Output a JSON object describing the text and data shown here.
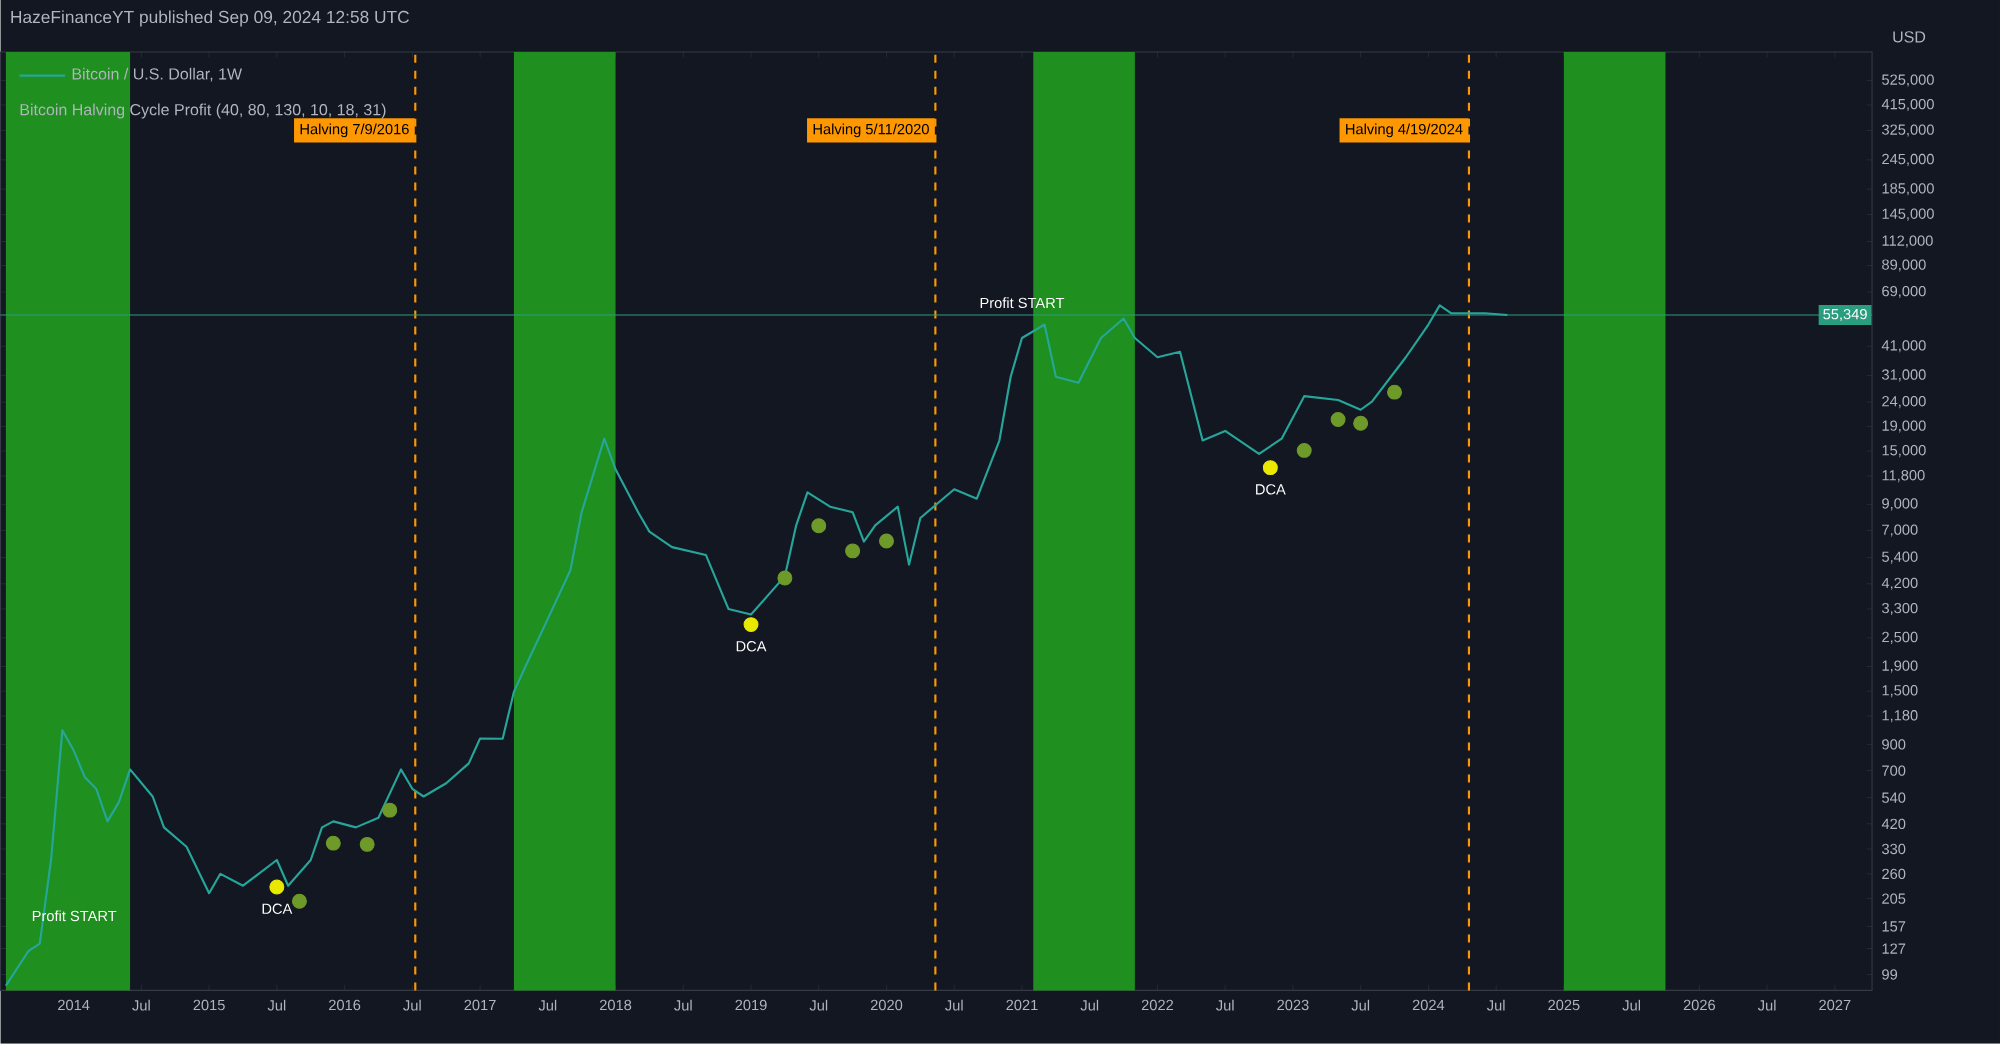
{
  "chart_data": {
    "type": "line",
    "title": "HazeFinanceYT published Sep 09, 2024 12:58 UTC",
    "subtitle": "Bitcoin Halving Cycle Profit (40, 80, 130, 10, 18, 31)",
    "ylabel": "USD",
    "log": "y",
    "legend": "top left",
    "xlim": [
      "2013-06-17",
      "2027-04-10"
    ],
    "ylim": [
      85,
      690000
    ],
    "xticks": [
      {
        "value": "2014-01",
        "label": "2014"
      },
      {
        "value": "2014-07",
        "label": "Jul"
      },
      {
        "value": "2015-01",
        "label": "2015"
      },
      {
        "value": "2015-07",
        "label": "Jul"
      },
      {
        "value": "2016-01",
        "label": "2016"
      },
      {
        "value": "2016-07",
        "label": "Jul"
      },
      {
        "value": "2017-01",
        "label": "2017"
      },
      {
        "value": "2017-07",
        "label": "Jul"
      },
      {
        "value": "2018-01",
        "label": "2018"
      },
      {
        "value": "2018-07",
        "label": "Jul"
      },
      {
        "value": "2019-01",
        "label": "2019"
      },
      {
        "value": "2019-07",
        "label": "Jul"
      },
      {
        "value": "2020-01",
        "label": "2020"
      },
      {
        "value": "2020-07",
        "label": "Jul"
      },
      {
        "value": "2021-01",
        "label": "2021"
      },
      {
        "value": "2021-07",
        "label": "Jul"
      },
      {
        "value": "2022-01",
        "label": "2022"
      },
      {
        "value": "2022-07",
        "label": "Jul"
      },
      {
        "value": "2023-01",
        "label": "2023"
      },
      {
        "value": "2023-07",
        "label": "Jul"
      },
      {
        "value": "2024-01",
        "label": "2024"
      },
      {
        "value": "2024-07",
        "label": "Jul"
      },
      {
        "value": "2025-01",
        "label": "2025"
      },
      {
        "value": "2025-07",
        "label": "Jul"
      },
      {
        "value": "2026-01",
        "label": "2026"
      },
      {
        "value": "2026-07",
        "label": "Jul"
      },
      {
        "value": "2027-01",
        "label": "2027"
      }
    ],
    "yticks": [
      {
        "value": 525000,
        "label": "525,000"
      },
      {
        "value": 415000,
        "label": "415,000"
      },
      {
        "value": 325000,
        "label": "325,000"
      },
      {
        "value": 245000,
        "label": "245,000"
      },
      {
        "value": 185000,
        "label": "185,000"
      },
      {
        "value": 145000,
        "label": "145,000"
      },
      {
        "value": 112000,
        "label": "112,000"
      },
      {
        "value": 89000,
        "label": "89,000"
      },
      {
        "value": 69000,
        "label": "69,000"
      },
      {
        "value": 41000,
        "label": "41,000"
      },
      {
        "value": 31000,
        "label": "31,000"
      },
      {
        "value": 24000,
        "label": "24,000"
      },
      {
        "value": 19000,
        "label": "19,000"
      },
      {
        "value": 15000,
        "label": "15,000"
      },
      {
        "value": 11800,
        "label": "11,800"
      },
      {
        "value": 9000,
        "label": "9,000"
      },
      {
        "value": 7000,
        "label": "7,000"
      },
      {
        "value": 5400,
        "label": "5,400"
      },
      {
        "value": 4200,
        "label": "4,200"
      },
      {
        "value": 3300,
        "label": "3,300"
      },
      {
        "value": 2500,
        "label": "2,500"
      },
      {
        "value": 1900,
        "label": "1,900"
      },
      {
        "value": 1500,
        "label": "1,500"
      },
      {
        "value": 1180,
        "label": "1,180"
      },
      900,
      700,
      540,
      420,
      330,
      260,
      205,
      157,
      127,
      99
    ],
    "series": [
      {
        "name": "Bitcoin / U.S. Dollar, 1W",
        "color": "#26a69a",
        "marker": "none",
        "x": [
          "2013-07",
          "2013-09",
          "2013-10",
          "2013-11",
          "2013-12",
          "2014-01",
          "2014-02",
          "2014-03",
          "2014-04",
          "2014-05",
          "2014-06",
          "2014-08",
          "2014-09",
          "2014-11",
          "2015-01",
          "2015-02",
          "2015-04",
          "2015-07",
          "2015-08",
          "2015-10",
          "2015-11",
          "2015-12",
          "2016-02",
          "2016-04",
          "2016-06",
          "2016-07",
          "2016-08",
          "2016-10",
          "2016-12",
          "2017-01",
          "2017-03",
          "2017-04",
          "2017-05",
          "2017-07",
          "2017-09",
          "2017-10",
          "2017-12",
          "2018-01",
          "2018-03",
          "2018-04",
          "2018-06",
          "2018-09",
          "2018-11",
          "2019-01",
          "2019-04",
          "2019-05",
          "2019-06",
          "2019-08",
          "2019-10",
          "2019-11",
          "2019-12",
          "2020-02",
          "2020-03",
          "2020-04",
          "2020-07",
          "2020-09",
          "2020-11",
          "2020-12",
          "2021-01",
          "2021-03",
          "2021-04",
          "2021-06",
          "2021-08",
          "2021-10",
          "2021-11",
          "2022-01",
          "2022-03",
          "2022-05",
          "2022-07",
          "2022-10",
          "2022-12",
          "2023-02",
          "2023-05",
          "2023-07",
          "2023-08",
          "2023-11",
          "2024-01",
          "2024-02",
          "2024-03",
          "2024-06",
          "2024-08"
        ],
        "values": [
          89,
          124,
          133,
          297,
          1030,
          850,
          656,
          588,
          430,
          516,
          708,
          546,
          406,
          337,
          216,
          260,
          232,
          297,
          232,
          297,
          406,
          430,
          406,
          445,
          708,
          588,
          546,
          620,
          750,
          952,
          950,
          1490,
          1890,
          3000,
          4780,
          8350,
          16900,
          12600,
          8350,
          6930,
          5970,
          5540,
          3300,
          3130,
          4520,
          7360,
          10100,
          8800,
          8350,
          6300,
          7360,
          8800,
          5050,
          7900,
          10400,
          9500,
          16600,
          30600,
          44400,
          50500,
          30600,
          28900,
          44400,
          53500,
          44400,
          36900,
          38900,
          16600,
          18200,
          14600,
          16900,
          25400,
          24500,
          22300,
          24100,
          36900,
          50500,
          60700,
          56300,
          56300,
          55349
        ]
      },
      {
        "type": "scatter",
        "color": "#e8e800",
        "marker": "circle",
        "x": [
          "2015-07",
          "2019-01",
          "2022-11"
        ],
        "values": [
          229,
          2840,
          12800
        ]
      },
      {
        "type": "scatter",
        "color": "#6e9a2a",
        "marker": "circle",
        "x": [
          "2015-09",
          "2015-12",
          "2016-03",
          "2016-05",
          "2019-04",
          "2019-07",
          "2019-10",
          "2020-01",
          "2023-02",
          "2023-05",
          "2023-07",
          "2023-10"
        ],
        "values": [
          200,
          349,
          345,
          479,
          4440,
          7330,
          5760,
          6330,
          15100,
          20300,
          19600,
          26400
        ]
      }
    ],
    "bands": [
      {
        "axis": "x",
        "from": "2013-07",
        "to": "2014-06",
        "color": "#1f8f1f"
      },
      {
        "axis": "x",
        "from": "2017-04",
        "to": "2018-01",
        "color": "#1f8f1f"
      },
      {
        "axis": "x",
        "from": "2021-02",
        "to": "2021-11",
        "color": "#1f8f1f"
      },
      {
        "axis": "x",
        "from": "2025-01",
        "to": "2025-10",
        "color": "#1f8f1f"
      }
    ],
    "ref_lines": [
      {
        "axis": "x",
        "value": "2016-07-09",
        "label": "Halving 7/9/2016",
        "color": "#ff9800",
        "line_style": "dashed"
      },
      {
        "axis": "x",
        "value": "2020-05-11",
        "label": "Halving 5/11/2020",
        "color": "#ff9800",
        "line_style": "dashed"
      },
      {
        "axis": "x",
        "value": "2024-04-19",
        "label": "Halving 4/19/2024",
        "color": "#ff9800",
        "line_style": "dashed"
      },
      {
        "axis": "y",
        "value": 55349,
        "label": "55,349",
        "color": "#2a9d7f",
        "line_style": "solid"
      }
    ],
    "annotations": [
      {
        "text": "Profit START",
        "x": "2013-09",
        "y": 124
      },
      {
        "text": "Profit START",
        "x": "2021-01",
        "y": 44400
      },
      {
        "text": "DCA",
        "x": "2015-07",
        "y": 229
      },
      {
        "text": "DCA",
        "x": "2019-01",
        "y": 2840
      },
      {
        "text": "DCA",
        "x": "2022-11",
        "y": 12800
      }
    ]
  }
}
